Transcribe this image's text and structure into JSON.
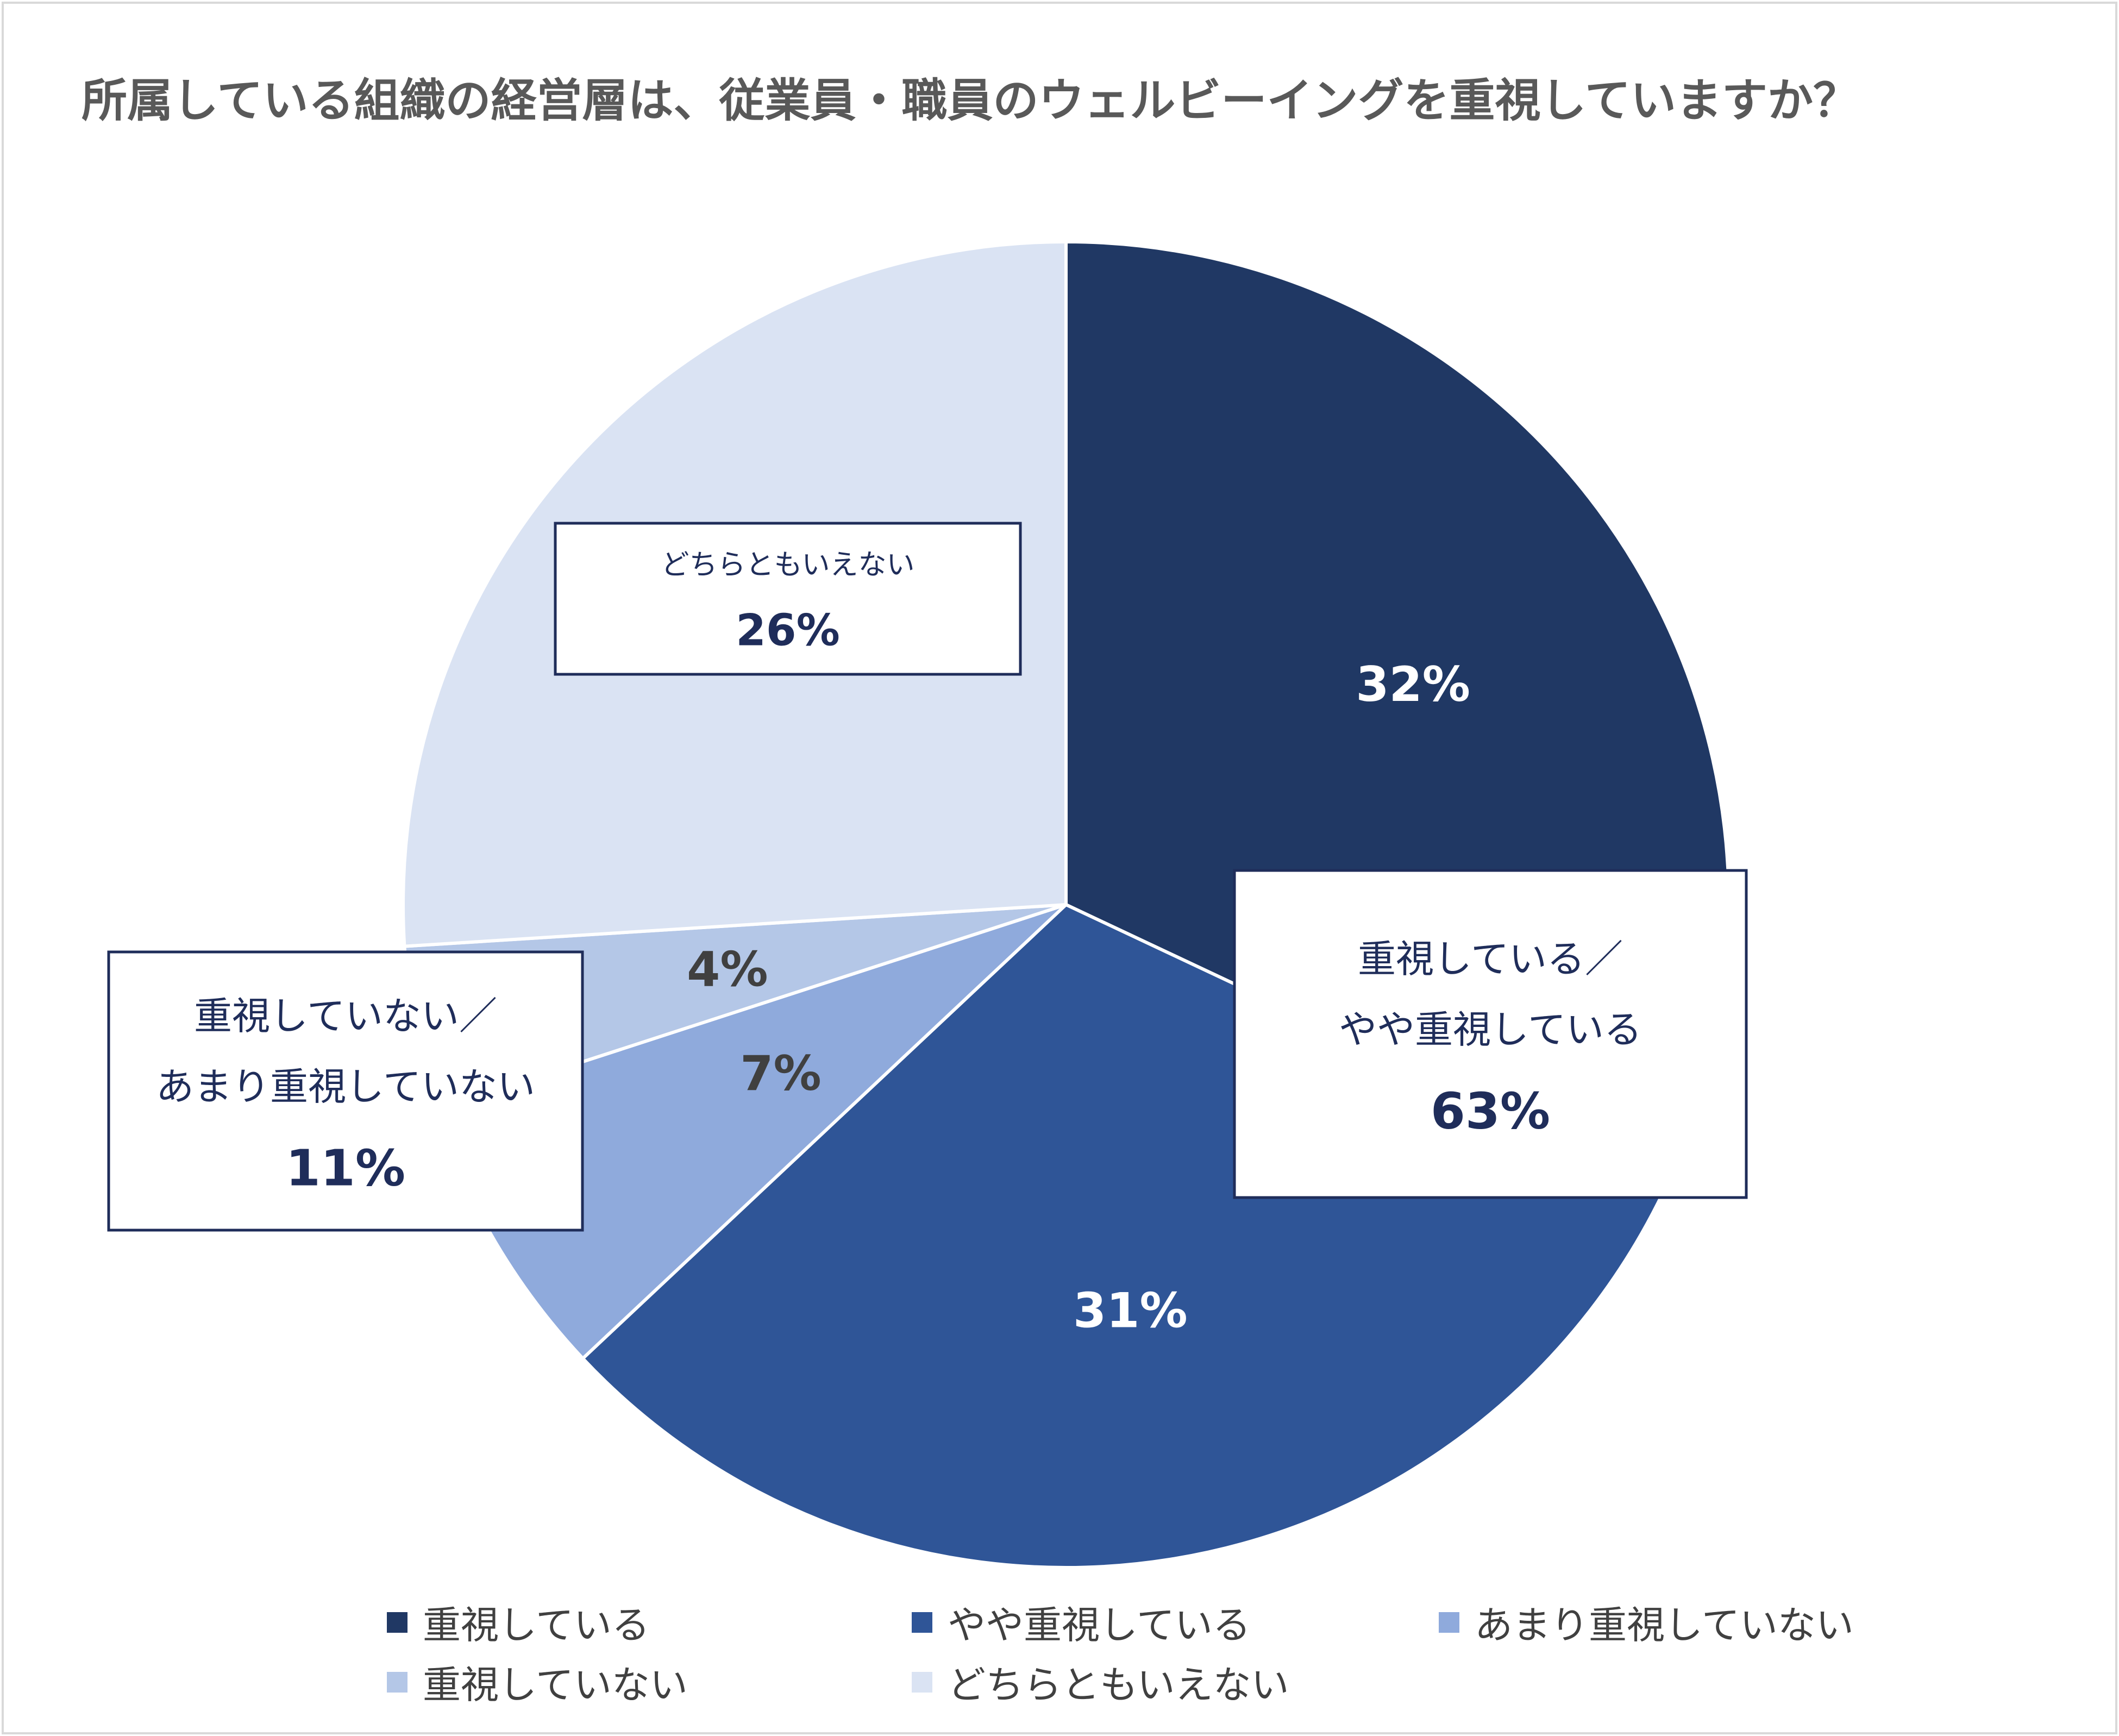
{
  "title": "所属している組織の経営層は、従業員・職員のウェルビーイングを重視していますか？",
  "chart_data": {
    "type": "pie",
    "categories": [
      "重視している",
      "やや重視している",
      "あまり重視していない",
      "重視していない",
      "どちらともいえない"
    ],
    "values": [
      32,
      31,
      7,
      4,
      26
    ],
    "value_labels": [
      "32%",
      "31%",
      "7%",
      "4%",
      "26%"
    ],
    "colors": [
      "#203864",
      "#2f5597",
      "#8faadc",
      "#b4c7e7",
      "#dae3f3"
    ],
    "label_colors": [
      "#ffffff",
      "#ffffff",
      "#404040",
      "#404040",
      "#1f2d5a"
    ],
    "start_angle": "12 o'clock",
    "direction": "clockwise",
    "annotations": [
      {
        "lines": [
          "どちらともいえない"
        ],
        "value": "26%"
      },
      {
        "lines": [
          "重視している／",
          "やや重視している"
        ],
        "value": "63%"
      },
      {
        "lines": [
          "重視していない／",
          "あまり重視していない"
        ],
        "value": "11%"
      }
    ],
    "legend_placement": "bottom"
  }
}
